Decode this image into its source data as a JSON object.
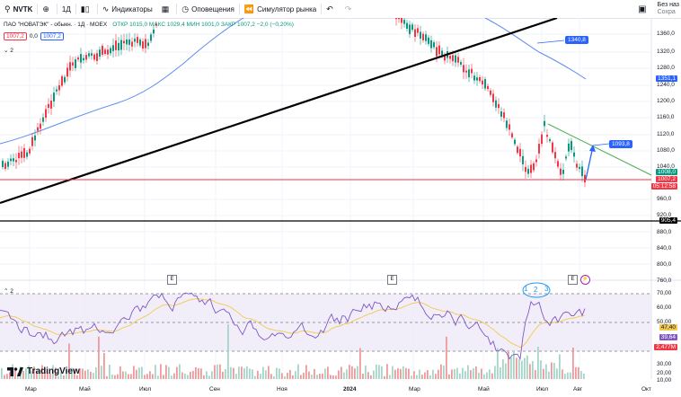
{
  "toolbar": {
    "symbol": "NVTK",
    "interval": "1Д",
    "indicators_label": "Индикаторы",
    "alerts_label": "Оповещения",
    "replay_label": "Симулятор рынка",
    "no_exchange_line1": "Без наз",
    "no_exchange_line2": "Сохра"
  },
  "legend": {
    "title": "ПАО \"НОВАТЭК\" - обыкн. · 1Д · MOEX",
    "open": "ОТКР 1015,0",
    "high": "МАКС 1029,4",
    "low": "МИН 1001,0",
    "close": "ЗАКР 1007,2",
    "change": "−2,0 (−0,20%)",
    "bid": "1007,2",
    "spread": "0,0",
    "ask": "1007,2",
    "sub_count": "2",
    "rsi_count": "2"
  },
  "price_axis": {
    "ticks": [
      "1360,0",
      "1320,0",
      "1280,0",
      "1240,0",
      "1200,0",
      "1160,0",
      "1120,0",
      "1080,0",
      "1040,0",
      "960,0",
      "920,0",
      "880,0",
      "840,0",
      "800,0",
      "760,0"
    ],
    "tags": {
      "ma_upper": "1351,1",
      "high_line": "1008,0",
      "last": "1007,2",
      "countdown": "05:12:58",
      "support": "905,4"
    }
  },
  "rsi_axis": {
    "ticks": [
      "70,00",
      "60,00",
      "50,00",
      "30,00",
      "20,00",
      "10,00"
    ],
    "tags": {
      "rsi_ma": "47,40",
      "rsi": "39,64",
      "volume": "2,477M"
    }
  },
  "callouts": {
    "ma_value": "1340,8",
    "arrow_target": "1093,8"
  },
  "annotations": [
    "1",
    "2",
    "3"
  ],
  "time_axis": [
    "Мар",
    "Май",
    "Июл",
    "Сен",
    "Ноя",
    "2024",
    "Мар",
    "Май",
    "Июл",
    "Авг",
    "Окт"
  ],
  "brand": "TradingView",
  "colors": {
    "up": "#089981",
    "down": "#f23645",
    "ma": "#5b8cf0",
    "rsi": "#7e57c2",
    "accent": "#2962ff"
  }
}
